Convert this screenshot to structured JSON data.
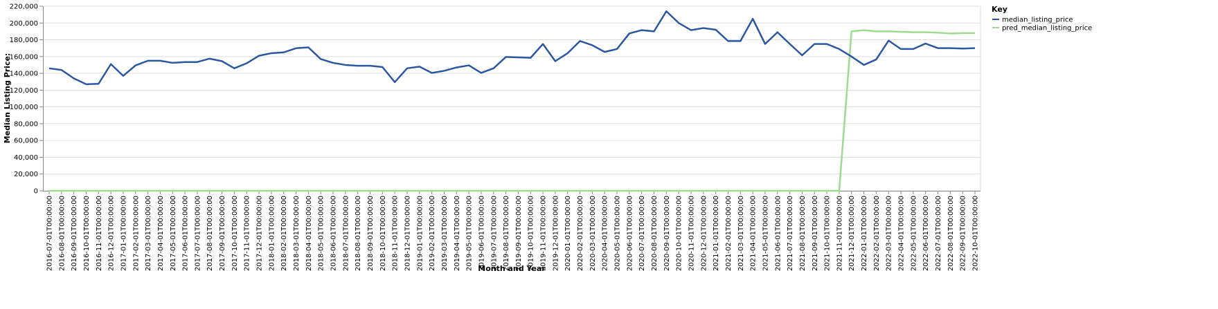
{
  "chart_data": {
    "type": "line",
    "x_label": "Month and Year",
    "y_label": "Median Listing Price:",
    "legend_title": "Key",
    "legend_position": "right",
    "grid": true,
    "categories": [
      "2016-07-01T00:00:00",
      "2016-08-01T00:00:00",
      "2016-09-01T00:00:00",
      "2016-10-01T00:00:00",
      "2016-11-01T00:00:00",
      "2016-12-01T00:00:00",
      "2017-01-01T00:00:00",
      "2017-02-01T00:00:00",
      "2017-03-01T00:00:00",
      "2017-04-01T00:00:00",
      "2017-05-01T00:00:00",
      "2017-06-01T00:00:00",
      "2017-07-01T00:00:00",
      "2017-08-01T00:00:00",
      "2017-09-01T00:00:00",
      "2017-10-01T00:00:00",
      "2017-11-01T00:00:00",
      "2017-12-01T00:00:00",
      "2018-01-01T00:00:00",
      "2018-02-01T00:00:00",
      "2018-03-01T00:00:00",
      "2018-04-01T00:00:00",
      "2018-05-01T00:00:00",
      "2018-06-01T00:00:00",
      "2018-07-01T00:00:00",
      "2018-08-01T00:00:00",
      "2018-09-01T00:00:00",
      "2018-10-01T00:00:00",
      "2018-11-01T00:00:00",
      "2018-12-01T00:00:00",
      "2019-01-01T00:00:00",
      "2019-02-01T00:00:00",
      "2019-03-01T00:00:00",
      "2019-04-01T00:00:00",
      "2019-05-01T00:00:00",
      "2019-06-01T00:00:00",
      "2019-07-01T00:00:00",
      "2019-08-01T00:00:00",
      "2019-09-01T00:00:00",
      "2019-10-01T00:00:00",
      "2019-11-01T00:00:00",
      "2019-12-01T00:00:00",
      "2020-01-01T00:00:00",
      "2020-02-01T00:00:00",
      "2020-03-01T00:00:00",
      "2020-04-01T00:00:00",
      "2020-05-01T00:00:00",
      "2020-06-01T00:00:00",
      "2020-07-01T00:00:00",
      "2020-08-01T00:00:00",
      "2020-09-01T00:00:00",
      "2020-10-01T00:00:00",
      "2020-11-01T00:00:00",
      "2020-12-01T00:00:00",
      "2021-01-01T00:00:00",
      "2021-02-01T00:00:00",
      "2021-03-01T00:00:00",
      "2021-04-01T00:00:00",
      "2021-05-01T00:00:00",
      "2021-06-01T00:00:00",
      "2021-07-01T00:00:00",
      "2021-08-01T00:00:00",
      "2021-09-01T00:00:00",
      "2021-10-01T00:00:00",
      "2021-11-01T00:00:00",
      "2021-12-01T00:00:00",
      "2022-01-01T00:00:00",
      "2022-02-01T00:00:00",
      "2022-03-01T00:00:00",
      "2022-04-01T00:00:00",
      "2022-05-01T00:00:00",
      "2022-06-01T00:00:00",
      "2022-07-01T00:00:00",
      "2022-08-01T00:00:00",
      "2022-09-01T00:00:00",
      "2022-10-01T00:00:00"
    ],
    "series": [
      {
        "name": "median_listing_price",
        "color": "#2b57a2",
        "values": [
          146000,
          144000,
          134000,
          127000,
          127500,
          151000,
          137000,
          149500,
          155000,
          155000,
          152500,
          153500,
          153500,
          157500,
          154500,
          146000,
          152000,
          161000,
          164000,
          165000,
          169900,
          171000,
          157000,
          152500,
          150000,
          149000,
          149000,
          147500,
          129500,
          146000,
          148000,
          140500,
          143000,
          147000,
          149500,
          140500,
          146000,
          159500,
          159000,
          158500,
          175000,
          154500,
          164000,
          178500,
          173500,
          165500,
          169000,
          187500,
          191500,
          190000,
          214000,
          200000,
          191500,
          194000,
          192000,
          178500,
          178500,
          205000,
          175000,
          189000,
          175000,
          161500,
          175000,
          175000,
          169000,
          160000,
          150000,
          156500,
          179000,
          169000,
          169000,
          175500,
          170000,
          170000,
          169500,
          170000
        ]
      },
      {
        "name": "pred_median_listing_price",
        "color": "#9cdb90",
        "values": [
          0,
          0,
          0,
          0,
          0,
          0,
          0,
          0,
          0,
          0,
          0,
          0,
          0,
          0,
          0,
          0,
          0,
          0,
          0,
          0,
          0,
          0,
          0,
          0,
          0,
          0,
          0,
          0,
          0,
          0,
          0,
          0,
          0,
          0,
          0,
          0,
          0,
          0,
          0,
          0,
          0,
          0,
          0,
          0,
          0,
          0,
          0,
          0,
          0,
          0,
          0,
          0,
          0,
          0,
          0,
          0,
          0,
          0,
          0,
          0,
          0,
          0,
          0,
          0,
          0,
          190000,
          191500,
          190000,
          190000,
          189500,
          189000,
          189000,
          188500,
          187500,
          188000,
          188000
        ]
      }
    ],
    "ylim": [
      0,
      220000
    ],
    "yticks": [
      0,
      {
        "value": 20000,
        "label": "20,000"
      },
      {
        "value": 40000,
        "label": "40,000"
      },
      {
        "value": 60000,
        "label": "60,000"
      },
      {
        "value": 80000,
        "label": "80,000"
      },
      {
        "value": 100000,
        "label": "100,000"
      },
      {
        "value": 120000,
        "label": "120,000"
      },
      {
        "value": 140000,
        "label": "140,000"
      },
      {
        "value": 160000,
        "label": "160,000"
      },
      {
        "value": 180000,
        "label": "180,000"
      },
      {
        "value": 200000,
        "label": "200,000"
      },
      {
        "value": 220000,
        "label": "220,000"
      }
    ]
  }
}
